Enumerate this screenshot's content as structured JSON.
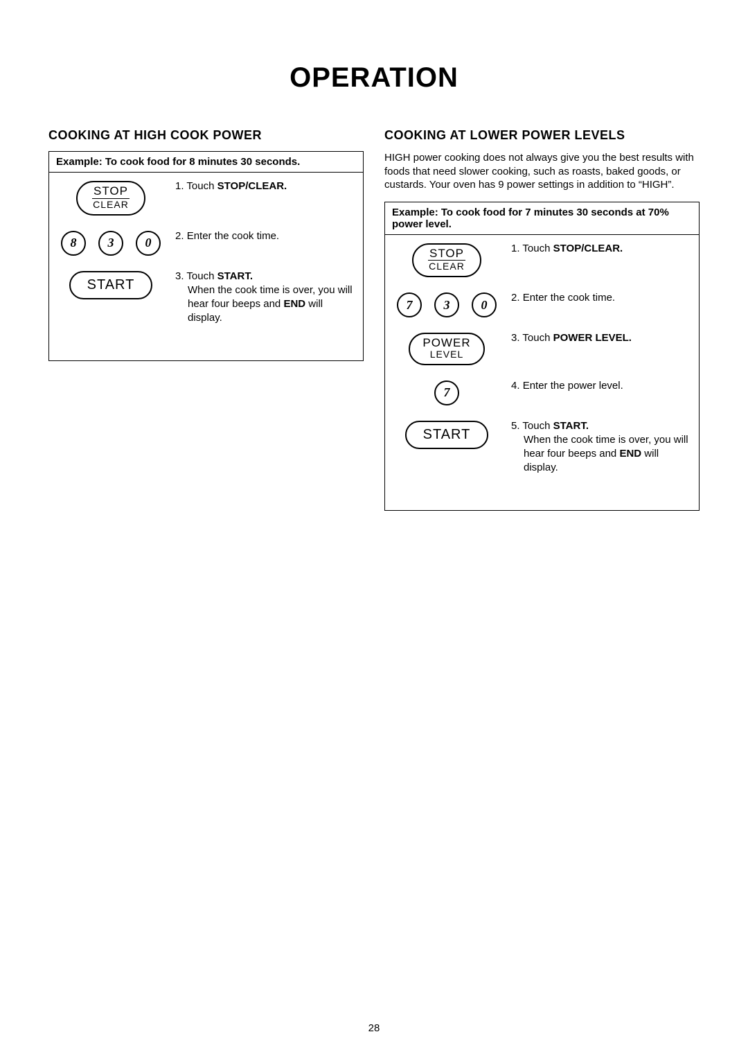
{
  "pageNumber": "28",
  "title": "OPERATION",
  "left": {
    "heading": "COOKING AT HIGH COOK POWER",
    "exampleHeader": "Example: To cook food for 8 minutes 30 seconds.",
    "steps": {
      "s1": {
        "num": "1.",
        "t1": "Touch ",
        "b1": "STOP/CLEAR."
      },
      "s2": {
        "num": "2.",
        "t1": "Enter the cook time."
      },
      "s3": {
        "num": "3.",
        "t1": "Touch ",
        "b1": "START.",
        "cont1": "When the cook time is over, you will hear four beeps and ",
        "contB": "END",
        "cont2": " will display."
      }
    },
    "digits": {
      "d1": "8",
      "d2": "3",
      "d3": "0"
    },
    "buttons": {
      "stop": {
        "l1": "STOP",
        "l2": "CLEAR"
      },
      "start": "START"
    }
  },
  "right": {
    "heading": "COOKING AT LOWER POWER LEVELS",
    "intro": "HIGH power cooking does not always give you the best results with foods that need slower cooking, such as roasts, baked goods, or custards. Your oven has 9 power settings in addition to “HIGH”.",
    "exampleHeader": "Example: To cook food for 7 minutes 30 seconds at 70% power level.",
    "steps": {
      "s1": {
        "num": "1.",
        "t1": "Touch ",
        "b1": "STOP/CLEAR."
      },
      "s2": {
        "num": "2.",
        "t1": "Enter the cook time."
      },
      "s3": {
        "num": "3.",
        "t1": "Touch ",
        "b1": "POWER LEVEL."
      },
      "s4": {
        "num": "4.",
        "t1": "Enter the power level."
      },
      "s5": {
        "num": "5.",
        "t1": "Touch ",
        "b1": "START.",
        "cont1": "When the cook time is over, you will hear four beeps and ",
        "contB": "END",
        "cont2": " will display."
      }
    },
    "digits": {
      "d1": "7",
      "d2": "3",
      "d3": "0"
    },
    "digitPower": "7",
    "buttons": {
      "stop": {
        "l1": "STOP",
        "l2": "CLEAR"
      },
      "power": {
        "l1": "POWER",
        "l2": "LEVEL"
      },
      "start": "START"
    }
  }
}
